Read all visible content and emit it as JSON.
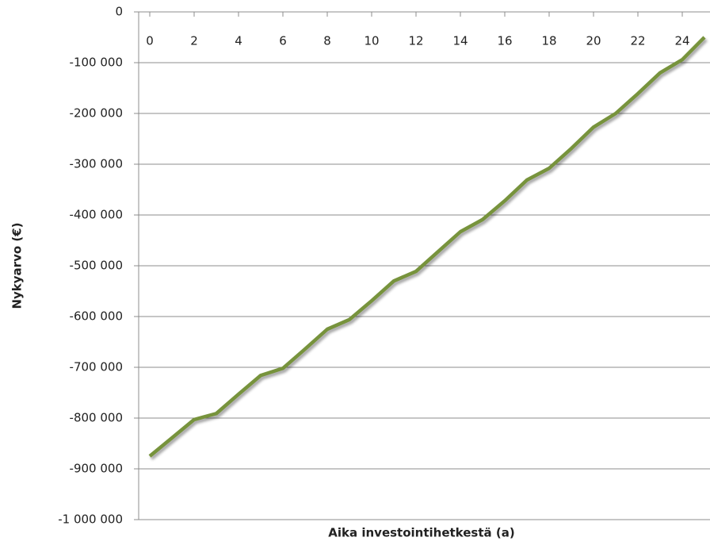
{
  "chart_data": {
    "type": "line",
    "x_axis_label": "Aika investointihetkestä (a)",
    "y_axis_label": "Nykyarvo (€)",
    "x": [
      0,
      1,
      2,
      3,
      4,
      5,
      6,
      7,
      8,
      9,
      10,
      11,
      12,
      13,
      14,
      15,
      16,
      17,
      18,
      19,
      20,
      21,
      22,
      23,
      24,
      25
    ],
    "values": [
      -875000,
      -839000,
      -803000,
      -791000,
      -753000,
      -716000,
      -702000,
      -664000,
      -625000,
      -606000,
      -569000,
      -530000,
      -511000,
      -472000,
      -433000,
      -409000,
      -372000,
      -331000,
      -308000,
      -269000,
      -227000,
      -200000,
      -161000,
      -120000,
      -94000,
      -50000
    ],
    "color": "#77933c",
    "xlim": [
      -0.5,
      25.5
    ],
    "xticks": [
      0,
      2,
      4,
      6,
      8,
      10,
      12,
      14,
      16,
      18,
      20,
      22,
      24
    ],
    "ylim": [
      -1000000,
      0
    ],
    "yticks": [
      0,
      {
        "value": -100000,
        "label": "-100 000"
      },
      {
        "value": -200000,
        "label": "-200 000"
      },
      {
        "value": -300000,
        "label": "-300 000"
      },
      {
        "value": -400000,
        "label": "-400 000"
      },
      {
        "value": -500000,
        "label": "-500 000"
      },
      {
        "value": -600000,
        "label": "-600 000"
      },
      {
        "value": -700000,
        "label": "-700 000"
      },
      {
        "value": -800000,
        "label": "-800 000"
      },
      {
        "value": -900000,
        "label": "-900 000"
      },
      {
        "value": -1000000,
        "label": "-1 000 000"
      }
    ],
    "grid": true
  }
}
